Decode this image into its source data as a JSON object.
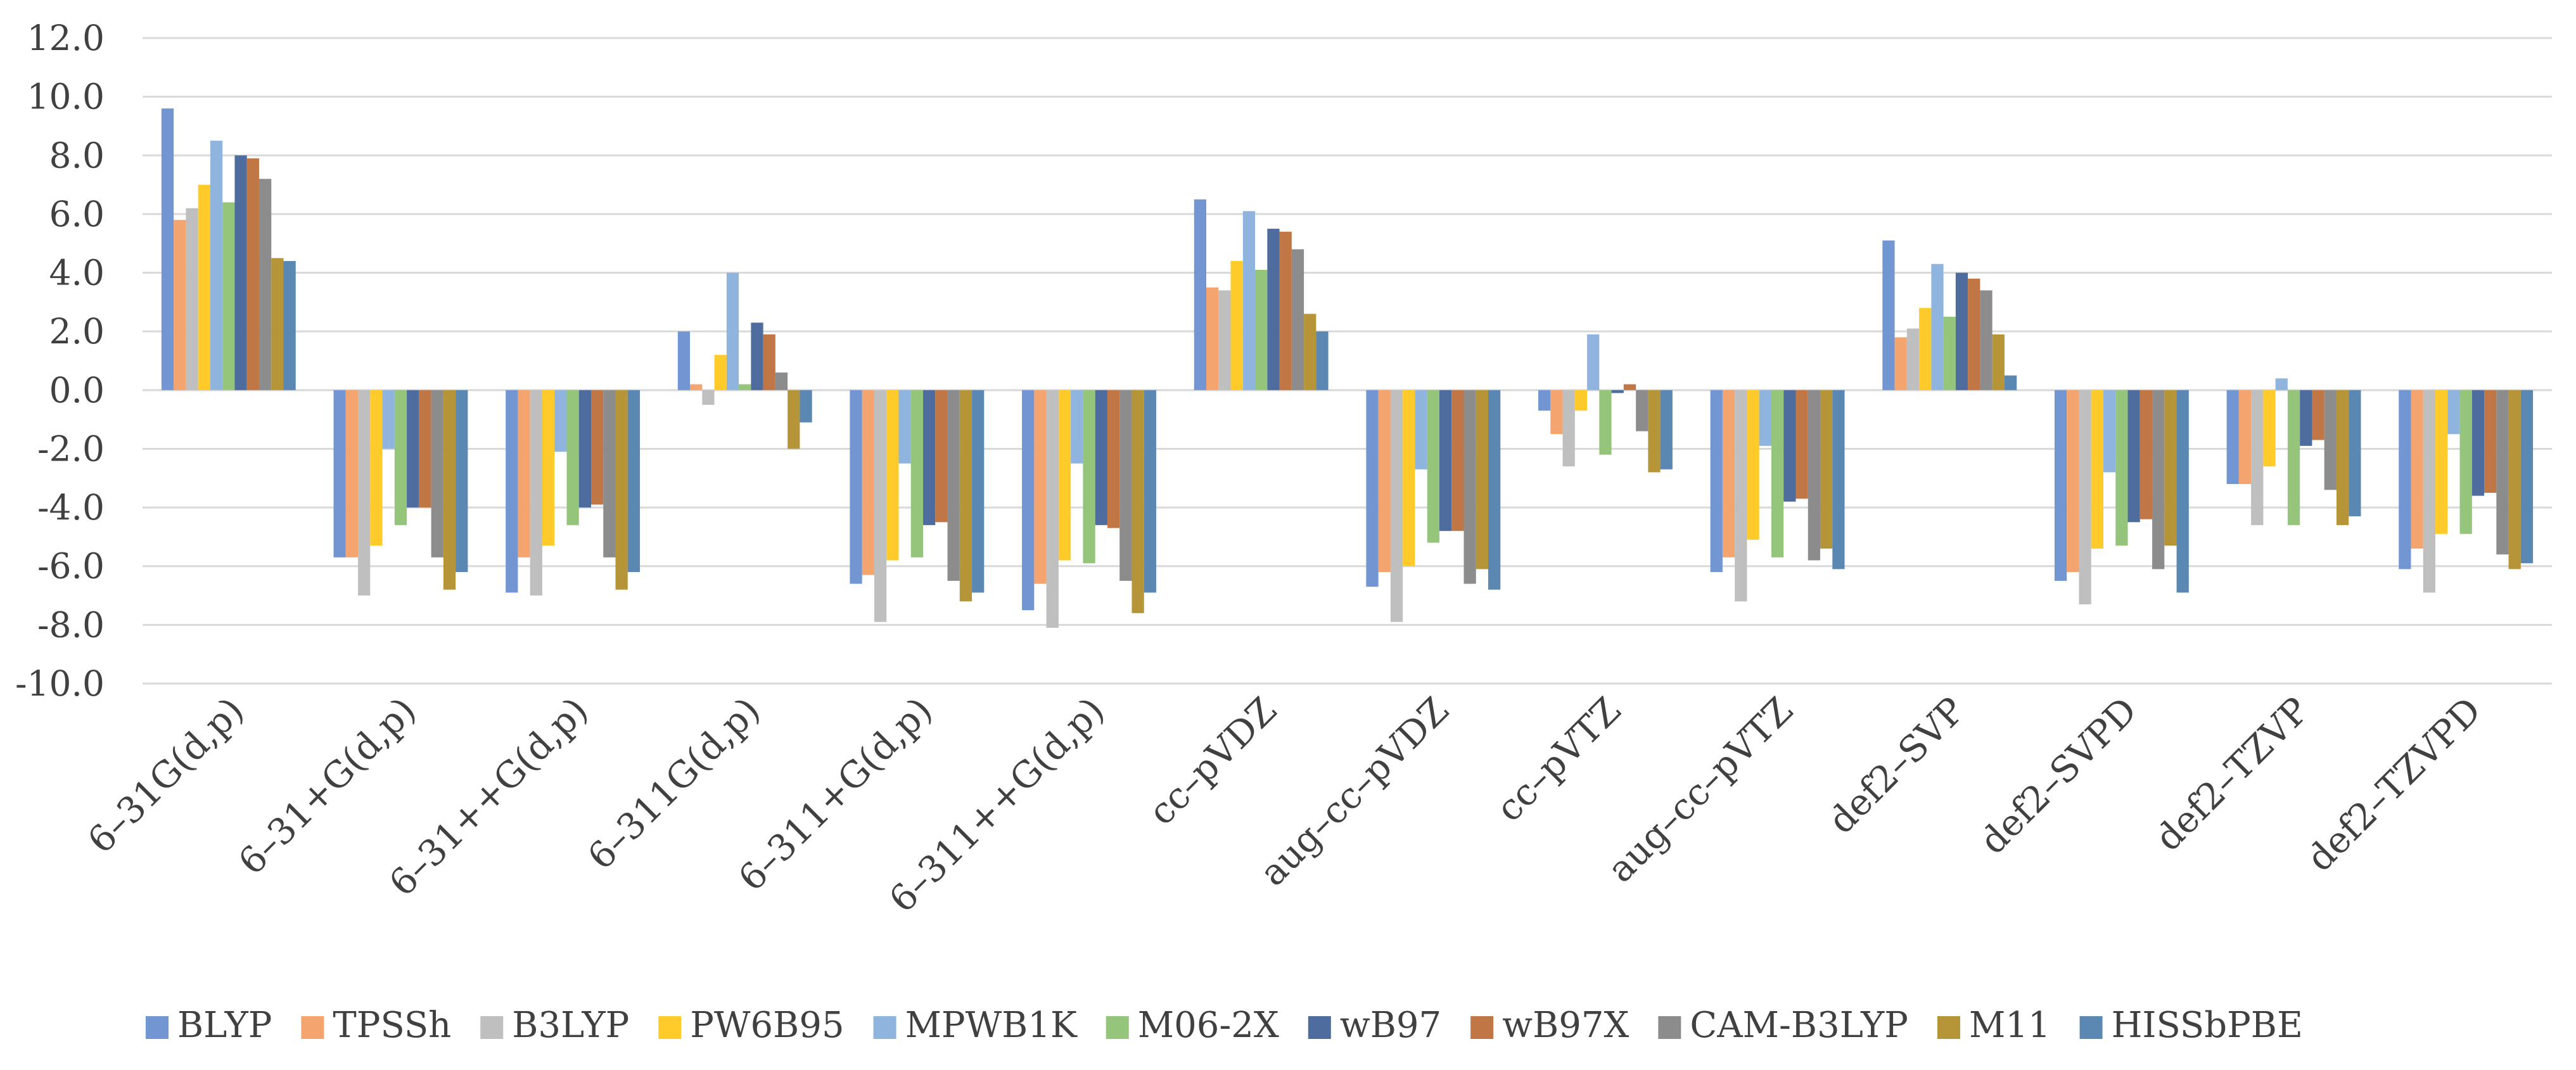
{
  "chart_data": {
    "type": "bar",
    "title": "",
    "xlabel": "",
    "ylabel": "",
    "ylim": [
      -10,
      12
    ],
    "yticks": [
      "12.0",
      "10.0",
      "8.0",
      "6.0",
      "4.0",
      "2.0",
      "0.0",
      "-2.0",
      "-4.0",
      "-6.0",
      "-8.0",
      "-10.0"
    ],
    "grid": true,
    "legend_position": "bottom",
    "categories": [
      "6–31G(d,p)",
      "6–31+G(d,p)",
      "6–31++G(d,p)",
      "6–311G(d,p)",
      "6–311+G(d,p)",
      "6–311++G(d,p)",
      "cc–pVDZ",
      "aug–cc–pVDZ",
      "cc–pVTZ",
      "aug–cc–pVTZ",
      "def2–SVP",
      "def2–SVPD",
      "def2–TZVP",
      "def2–TZVPD"
    ],
    "series": [
      {
        "name": "BLYP",
        "color": "#7196D2",
        "values": [
          9.6,
          -5.7,
          -6.9,
          2.0,
          -6.6,
          -7.5,
          6.5,
          -6.7,
          -0.7,
          -6.2,
          5.1,
          -6.5,
          -3.2,
          -6.1
        ]
      },
      {
        "name": "TPSSh",
        "color": "#F3A46F",
        "values": [
          5.8,
          -5.7,
          -5.7,
          0.2,
          -6.3,
          -6.6,
          3.5,
          -6.2,
          -1.5,
          -5.7,
          1.8,
          -6.2,
          -3.2,
          -5.4
        ]
      },
      {
        "name": "B3LYP",
        "color": "#BFBFBF",
        "values": [
          6.2,
          -7.0,
          -7.0,
          -0.5,
          -7.9,
          -8.1,
          3.4,
          -7.9,
          -2.6,
          -7.2,
          2.1,
          -7.3,
          -4.6,
          -6.9
        ]
      },
      {
        "name": "PW6B95",
        "color": "#FFCB2A",
        "values": [
          7.0,
          -5.3,
          -5.3,
          1.2,
          -5.8,
          -5.8,
          4.4,
          -6.0,
          -0.7,
          -5.1,
          2.8,
          -5.4,
          -2.6,
          -4.9
        ]
      },
      {
        "name": "MPWB1K",
        "color": "#8FB5DE",
        "values": [
          8.5,
          -2.0,
          -2.1,
          4.0,
          -2.5,
          -2.5,
          6.1,
          -2.7,
          1.9,
          -1.9,
          4.3,
          -2.8,
          0.4,
          -1.5
        ]
      },
      {
        "name": "M06-2X",
        "color": "#94C57A",
        "values": [
          6.4,
          -4.6,
          -4.6,
          0.2,
          -5.7,
          -5.9,
          4.1,
          -5.2,
          -2.2,
          -5.7,
          2.5,
          -5.3,
          -4.6,
          -4.9
        ]
      },
      {
        "name": "wB97",
        "color": "#4F6C9E",
        "values": [
          8.0,
          -4.0,
          -4.0,
          2.3,
          -4.6,
          -4.6,
          5.5,
          -4.8,
          -0.1,
          -3.8,
          4.0,
          -4.5,
          -1.9,
          -3.6
        ]
      },
      {
        "name": "wB97X",
        "color": "#C07745",
        "values": [
          7.9,
          -4.0,
          -3.9,
          1.9,
          -4.5,
          -4.7,
          5.4,
          -4.8,
          0.2,
          -3.7,
          3.8,
          -4.4,
          -1.7,
          -3.5
        ]
      },
      {
        "name": "CAM-B3LYP",
        "color": "#8C8C8C",
        "values": [
          7.2,
          -5.7,
          -5.7,
          0.6,
          -6.5,
          -6.5,
          4.8,
          -6.6,
          -1.4,
          -5.8,
          3.4,
          -6.1,
          -3.4,
          -5.6
        ]
      },
      {
        "name": "M11",
        "color": "#B69538",
        "values": [
          4.5,
          -6.8,
          -6.8,
          -2.0,
          -7.2,
          -7.6,
          2.6,
          -6.1,
          -2.8,
          -5.4,
          1.9,
          -5.3,
          -4.6,
          -6.1
        ]
      },
      {
        "name": "HISSbPBE",
        "color": "#5B88B3",
        "values": [
          4.4,
          -6.2,
          -6.2,
          -1.1,
          -6.9,
          -6.9,
          2.0,
          -6.8,
          -2.7,
          -6.1,
          0.5,
          -6.9,
          -4.3,
          -5.9
        ]
      }
    ]
  }
}
